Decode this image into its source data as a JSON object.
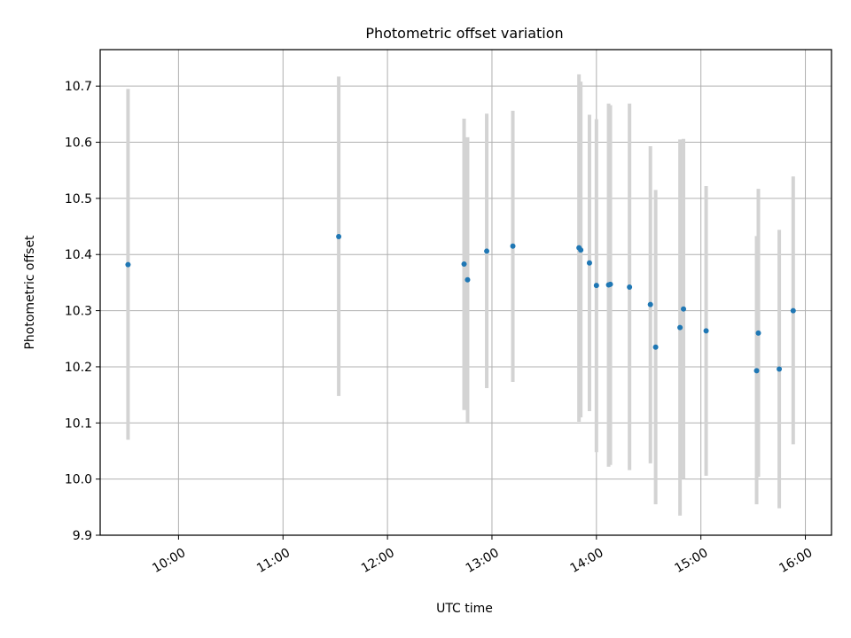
{
  "chart_data": {
    "type": "scatter",
    "title": "Photometric offset variation",
    "xlabel": "UTC time",
    "ylabel": "Photometric offset",
    "xlim": [
      "09:15",
      "16:15"
    ],
    "ylim": [
      9.9,
      10.765
    ],
    "x_ticks": [
      "10:00",
      "11:00",
      "12:00",
      "13:00",
      "14:00",
      "15:00",
      "16:00"
    ],
    "y_ticks": [
      "9.9",
      "10.0",
      "10.1",
      "10.2",
      "10.3",
      "10.4",
      "10.5",
      "10.6",
      "10.7"
    ],
    "grid": true,
    "colors": {
      "points": "#1f77b4",
      "error_bars": "#d3d3d3",
      "grid": "#b0b0b0"
    },
    "series": [
      {
        "points": [
          {
            "x": "09:31",
            "y": 10.382,
            "yerr_low": 10.07,
            "yerr_high": 10.695
          },
          {
            "x": "11:32",
            "y": 10.432,
            "yerr_low": 10.148,
            "yerr_high": 10.717
          },
          {
            "x": "12:44",
            "y": 10.383,
            "yerr_low": 10.123,
            "yerr_high": 10.642
          },
          {
            "x": "12:46",
            "y": 10.355,
            "yerr_low": 10.101,
            "yerr_high": 10.609
          },
          {
            "x": "12:57",
            "y": 10.406,
            "yerr_low": 10.162,
            "yerr_high": 10.651
          },
          {
            "x": "13:12",
            "y": 10.415,
            "yerr_low": 10.173,
            "yerr_high": 10.656
          },
          {
            "x": "13:50",
            "y": 10.412,
            "yerr_low": 10.102,
            "yerr_high": 10.721
          },
          {
            "x": "13:51",
            "y": 10.408,
            "yerr_low": 10.11,
            "yerr_high": 10.708
          },
          {
            "x": "13:56",
            "y": 10.385,
            "yerr_low": 10.121,
            "yerr_high": 10.649
          },
          {
            "x": "14:00",
            "y": 10.345,
            "yerr_low": 10.048,
            "yerr_high": 10.641
          },
          {
            "x": "14:07",
            "y": 10.346,
            "yerr_low": 10.022,
            "yerr_high": 10.669
          },
          {
            "x": "14:08",
            "y": 10.347,
            "yerr_low": 10.025,
            "yerr_high": 10.666
          },
          {
            "x": "14:19",
            "y": 10.342,
            "yerr_low": 10.016,
            "yerr_high": 10.669
          },
          {
            "x": "14:31",
            "y": 10.311,
            "yerr_low": 10.028,
            "yerr_high": 10.593
          },
          {
            "x": "14:34",
            "y": 10.235,
            "yerr_low": 9.955,
            "yerr_high": 10.515
          },
          {
            "x": "14:48",
            "y": 10.27,
            "yerr_low": 9.935,
            "yerr_high": 10.605
          },
          {
            "x": "14:50",
            "y": 10.303,
            "yerr_low": 10.0,
            "yerr_high": 10.606
          },
          {
            "x": "15:03",
            "y": 10.264,
            "yerr_low": 10.006,
            "yerr_high": 10.522
          },
          {
            "x": "15:32",
            "y": 10.193,
            "yerr_low": 9.955,
            "yerr_high": 10.433
          },
          {
            "x": "15:33",
            "y": 10.26,
            "yerr_low": 10.004,
            "yerr_high": 10.517
          },
          {
            "x": "15:45",
            "y": 10.196,
            "yerr_low": 9.948,
            "yerr_high": 10.444
          },
          {
            "x": "15:53",
            "y": 10.3,
            "yerr_low": 10.062,
            "yerr_high": 10.539
          }
        ]
      }
    ]
  }
}
